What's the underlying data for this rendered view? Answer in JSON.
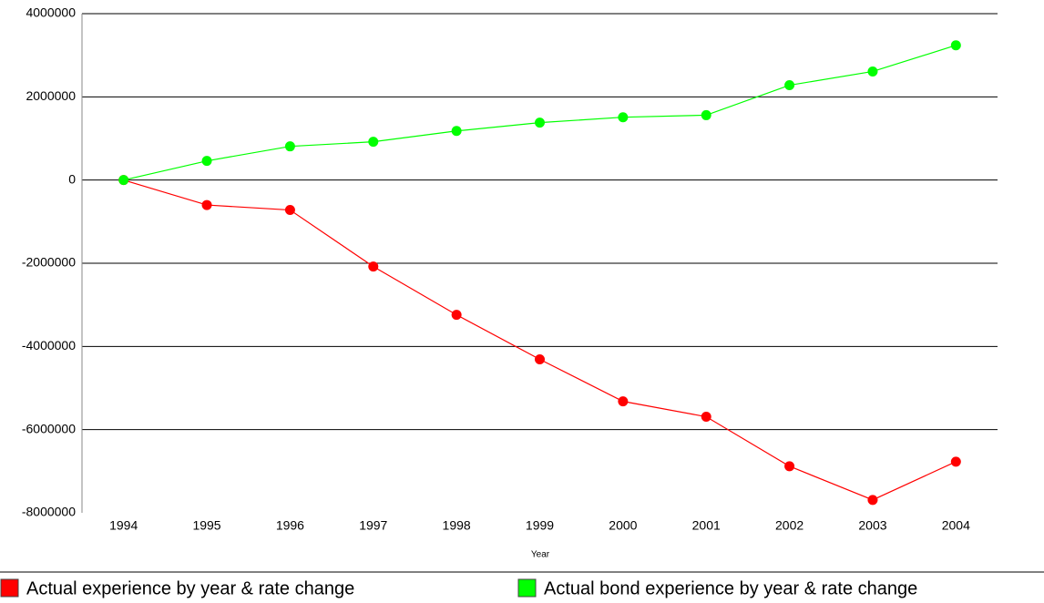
{
  "chart_data": {
    "type": "line",
    "x_label": "Year",
    "categories": [
      "1994",
      "1995",
      "1996",
      "1997",
      "1998",
      "1999",
      "2000",
      "2001",
      "2002",
      "2003",
      "2004"
    ],
    "series": [
      {
        "name": "Actual experience by year & rate change",
        "color": "#ff0000",
        "values": [
          0,
          -600000,
          -720000,
          -2080000,
          -3240000,
          -4310000,
          -5320000,
          -5690000,
          -6880000,
          -7690000,
          -6770000
        ]
      },
      {
        "name": "Actual bond experience by year & rate change",
        "color": "#00ff00",
        "values": [
          0,
          460000,
          810000,
          920000,
          1180000,
          1380000,
          1510000,
          1560000,
          2280000,
          2610000,
          3240000
        ]
      }
    ],
    "ylim": [
      -8000000,
      4000000
    ],
    "yticks": [
      -8000000,
      -6000000,
      -4000000,
      -2000000,
      0,
      2000000,
      4000000
    ],
    "grid": true
  }
}
